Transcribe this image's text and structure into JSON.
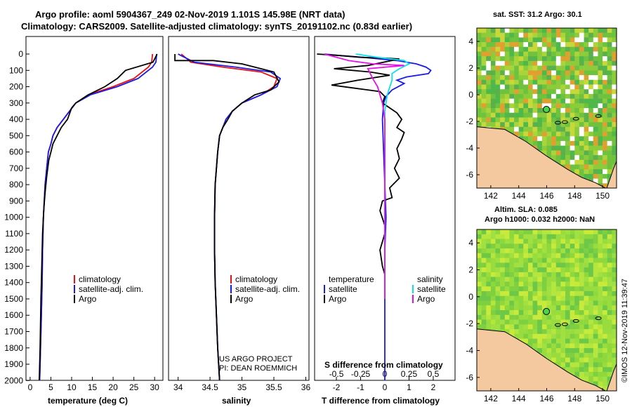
{
  "header": {
    "title_line1": "Argo profile: aoml 5904367_249 02-Nov-2019 1.101S 145.98E (NRT data)",
    "title_line2": "Climatology: CARS2009. Satellite-adjusted climatology: synTS_20191102.nc (0.83d earlier)"
  },
  "colors": {
    "climatology": "#e81010",
    "satellite": "#1a1ae8",
    "argo": "#000000",
    "sat_salinity": "#10e0e8",
    "argo_salinity": "#e810e8",
    "land": "#f5c9a0"
  },
  "depth_ticks": [
    "0",
    "100",
    "200",
    "300",
    "400",
    "500",
    "600",
    "700",
    "800",
    "900",
    "1000",
    "1100",
    "1200",
    "1300",
    "1400",
    "1500",
    "1600",
    "1700",
    "1800",
    "1900",
    "2000"
  ],
  "chart_data": [
    {
      "type": "line",
      "xlabel": "temperature (deg C)",
      "xticks": [
        "0",
        "5",
        "10",
        "15",
        "20",
        "25",
        "30"
      ],
      "xlim": [
        -1,
        32
      ],
      "ylim": [
        2100,
        0
      ],
      "legend": [
        "climatology",
        "satellite-adj. clim.",
        "Argo"
      ],
      "series": [
        {
          "name": "climatology",
          "x": [
            29.5,
            29.3,
            28.5,
            25,
            20,
            14,
            11,
            9.5,
            8,
            6.5,
            5.5,
            5,
            4.4,
            4,
            3.6,
            3.4,
            3.2,
            3,
            2.9,
            2.7,
            2.5,
            2.3
          ],
          "y": [
            0,
            50,
            80,
            150,
            200,
            250,
            300,
            350,
            400,
            450,
            500,
            550,
            600,
            700,
            800,
            900,
            1000,
            1200,
            1400,
            1600,
            1800,
            2000
          ]
        },
        {
          "name": "satellite-adj. clim.",
          "x": [
            30.5,
            30.3,
            29.5,
            26,
            21,
            14.5,
            11,
            9.5,
            8,
            6.5,
            5.5,
            5,
            4.4,
            4,
            3.6,
            3.4,
            3.2,
            3,
            2.9,
            2.7,
            2.5,
            2.3
          ],
          "y": [
            0,
            50,
            80,
            150,
            200,
            250,
            300,
            350,
            400,
            450,
            500,
            550,
            600,
            700,
            800,
            900,
            1000,
            1200,
            1400,
            1600,
            1800,
            2000
          ]
        },
        {
          "name": "Argo",
          "x": [
            30.6,
            30,
            29.6,
            23,
            21,
            18,
            14,
            11,
            10,
            9,
            7.5,
            6.5,
            5.5,
            5,
            4.5,
            4,
            3.6,
            3.3,
            3,
            2.8,
            2.6,
            2.4,
            2.2
          ],
          "y": [
            0,
            30,
            50,
            100,
            150,
            200,
            250,
            300,
            330,
            400,
            450,
            500,
            550,
            600,
            650,
            750,
            850,
            950,
            1100,
            1300,
            1500,
            1800,
            2000
          ]
        }
      ]
    },
    {
      "type": "line",
      "xlabel": "salinity",
      "xticks": [
        "34",
        "34.5",
        "35",
        "35.5",
        "36"
      ],
      "xlim": [
        33.85,
        36.05
      ],
      "ylim": [
        2100,
        0
      ],
      "legend": [
        "climatology",
        "satellite-adj. clim.",
        "Argo"
      ],
      "series": [
        {
          "name": "climatology",
          "x": [
            34.05,
            34.2,
            34.7,
            35.3,
            35.55,
            35.5,
            35.3,
            35.0,
            34.85,
            34.75,
            34.7,
            34.65,
            34.62,
            34.6,
            34.58,
            34.57,
            34.57,
            34.58,
            34.6,
            34.62,
            34.65
          ],
          "y": [
            0,
            50,
            80,
            110,
            150,
            200,
            250,
            300,
            350,
            400,
            450,
            500,
            600,
            700,
            800,
            1000,
            1200,
            1400,
            1600,
            1800,
            2000
          ]
        },
        {
          "name": "satellite-adj. clim.",
          "x": [
            34.0,
            34.25,
            34.9,
            35.45,
            35.6,
            35.55,
            35.3,
            35.0,
            34.85,
            34.75,
            34.7,
            34.65,
            34.62,
            34.6,
            34.58,
            34.57,
            34.57,
            34.58,
            34.6,
            34.62,
            34.65
          ],
          "y": [
            0,
            50,
            80,
            110,
            150,
            200,
            250,
            300,
            350,
            400,
            450,
            500,
            600,
            700,
            800,
            1000,
            1200,
            1400,
            1600,
            1800,
            2000
          ]
        },
        {
          "name": "Argo",
          "x": [
            33.95,
            33.95,
            34.55,
            35.0,
            35.5,
            35.58,
            35.45,
            35.2,
            35.0,
            34.85,
            34.78,
            34.7,
            34.65,
            34.62,
            34.6,
            34.58,
            34.57,
            34.57,
            34.58,
            34.6,
            34.62,
            34.65
          ],
          "y": [
            0,
            40,
            40,
            60,
            110,
            170,
            220,
            250,
            300,
            350,
            400,
            450,
            500,
            600,
            700,
            800,
            1000,
            1200,
            1400,
            1600,
            1800,
            2000
          ]
        }
      ]
    },
    {
      "type": "line",
      "xlabel": "T difference from climatology",
      "xlabel_top": "S difference from climatology",
      "xticks": [
        "-2",
        "-1",
        "0",
        "1",
        "2"
      ],
      "xticks_top": [
        "-0.5",
        "-0.25",
        "0",
        "0.25",
        "0.5"
      ],
      "xlim": [
        -2.9,
        2.9
      ],
      "ylim": [
        2100,
        0
      ],
      "legend_left_title": "temperature",
      "legend_right_title": "salinity",
      "legend_left": [
        "satellite",
        "Argo"
      ],
      "legend_right": [
        "satellite",
        "Argo"
      ],
      "series": [
        {
          "name": "satellite",
          "x": [
            -2.5,
            -1.8,
            -0.9,
            0.5,
            1.3,
            1.7,
            1.9,
            1.8,
            0.9,
            0.5,
            0.8,
            0.3,
            0.05,
            -0.05,
            -0.1,
            -0.05,
            0,
            0.05,
            0,
            0,
            0,
            0,
            0
          ],
          "y": [
            0,
            10,
            20,
            40,
            60,
            80,
            100,
            120,
            140,
            160,
            180,
            220,
            260,
            300,
            400,
            600,
            800,
            1000,
            1200,
            1400,
            1600,
            1800,
            2000
          ]
        },
        {
          "name": "Argo",
          "x": [
            -2.8,
            -1.8,
            -1,
            0,
            0.6,
            -0.7,
            -2.1,
            -0.6,
            0.2,
            -1.1,
            -2.2,
            -0.2,
            0,
            -0.1,
            0.2,
            0.5,
            0.7,
            0.5,
            0.8,
            0.7,
            0.5,
            0.6,
            0.4,
            0.6,
            0.2,
            0.3,
            -0.1,
            -0.2,
            0,
            0,
            -0.2,
            -0.1,
            0
          ],
          "y": [
            0,
            10,
            20,
            25,
            30,
            70,
            90,
            110,
            130,
            160,
            190,
            230,
            260,
            300,
            330,
            360,
            400,
            450,
            480,
            520,
            580,
            640,
            700,
            760,
            820,
            880,
            900,
            960,
            1050,
            1100,
            1200,
            1300,
            1350
          ]
        },
        {
          "name": "satellite",
          "x": [
            -1.2,
            -0.3,
            0.8,
            1.0,
            0.6,
            0.3,
            0.3,
            0.1,
            0,
            0,
            0,
            0,
            0,
            0,
            0
          ],
          "y": [
            0,
            20,
            40,
            60,
            90,
            120,
            160,
            250,
            350,
            500,
            700,
            900,
            1100,
            1300,
            1500
          ]
        },
        {
          "name": "Argo",
          "x": [
            -2.5,
            -1.5,
            -0.5,
            0.8,
            -0.7,
            -0.5,
            -0.3,
            -0.2,
            -0.1,
            0,
            0,
            0,
            0,
            0,
            0
          ],
          "y": [
            0,
            40,
            60,
            70,
            90,
            150,
            200,
            250,
            300,
            400,
            600,
            800,
            1000,
            1200,
            1500
          ]
        }
      ],
      "annotation_lines": [
        "US ARGO PROJECT",
        "PI: DEAN ROEMMICH"
      ]
    },
    {
      "type": "heatmap",
      "title": "sat. SST: 31.2 Argo: 30.1",
      "xticks": [
        "142",
        "144",
        "146",
        "148",
        "150"
      ],
      "yticks": [
        "4",
        "2",
        "0",
        "-2",
        "-4",
        "-6"
      ],
      "xlim": [
        141,
        151
      ],
      "ylim": [
        -7,
        5
      ],
      "argo_position": [
        145.98,
        -1.101
      ]
    },
    {
      "type": "heatmap",
      "title": "Altim. SLA: 0.085",
      "subtitle": "Argo h1000: 0.032 h2000: NaN",
      "xticks": [
        "142",
        "144",
        "146",
        "148",
        "150"
      ],
      "yticks": [
        "4",
        "2",
        "0",
        "-2",
        "-4",
        "-6"
      ],
      "xlim": [
        141,
        151
      ],
      "ylim": [
        -7,
        5
      ],
      "argo_position": [
        145.98,
        -1.101
      ]
    }
  ],
  "footer": {
    "credit": "©IMOS 12-Nov-2019 11:39:47"
  }
}
